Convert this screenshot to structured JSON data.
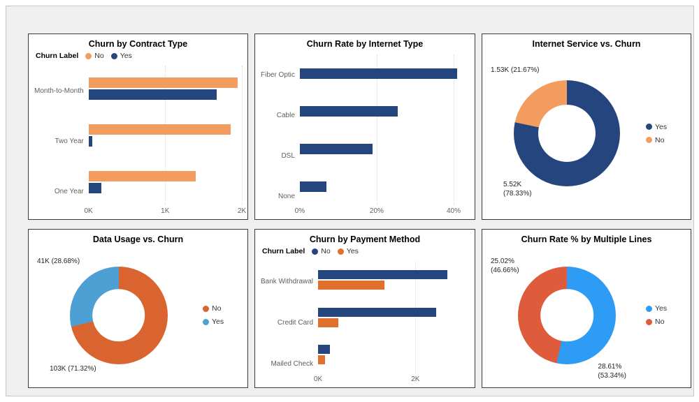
{
  "chart_data": [
    {
      "type": "bar",
      "orientation": "horizontal",
      "title": "Churn by Contract Type",
      "legend": {
        "title": "Churn Label",
        "items": [
          {
            "label": "No",
            "color": "#F39C5F"
          },
          {
            "label": "Yes",
            "color": "#24457D"
          }
        ]
      },
      "categories": [
        "Month-to-Month",
        "Two Year",
        "One Year"
      ],
      "series": [
        {
          "name": "No",
          "color": "#F39C5F",
          "values": [
            1945,
            1855,
            1400
          ]
        },
        {
          "name": "Yes",
          "color": "#24457D",
          "values": [
            1670,
            45,
            165
          ]
        }
      ],
      "x_ticks": [
        {
          "label": "0K",
          "value": 0
        },
        {
          "label": "1K",
          "value": 1000
        },
        {
          "label": "2K",
          "value": 2000
        }
      ],
      "xlim": [
        0,
        2000
      ],
      "grid": true,
      "legend_position": "top-left"
    },
    {
      "type": "bar",
      "orientation": "horizontal",
      "title": "Churn Rate by Internet Type",
      "categories": [
        "Fiber Optic",
        "Cable",
        "DSL",
        "None"
      ],
      "series": [
        {
          "name": "Churn Rate",
          "color": "#24457D",
          "values": [
            41,
            25.5,
            19,
            7
          ]
        }
      ],
      "x_ticks": [
        {
          "label": "0%",
          "value": 0
        },
        {
          "label": "20%",
          "value": 20
        },
        {
          "label": "40%",
          "value": 40
        }
      ],
      "xlim": [
        0,
        44
      ],
      "grid": true
    },
    {
      "type": "donut",
      "title": "Internet Service vs. Churn",
      "slices": [
        {
          "name": "Yes",
          "color": "#24457D",
          "value_label": "5.52K",
          "pct": 78.33,
          "label_lines": [
            "5.52K",
            "(78.33%)"
          ],
          "label_anchor": "bottom-left"
        },
        {
          "name": "No",
          "color": "#F39C5F",
          "value_label": "1.53K",
          "pct": 21.67,
          "label_lines": [
            "1.53K (21.67%)"
          ],
          "label_anchor": "top-left"
        }
      ],
      "legend": {
        "items": [
          {
            "label": "Yes",
            "color": "#24457D"
          },
          {
            "label": "No",
            "color": "#F39C5F"
          }
        ]
      },
      "legend_position": "right"
    },
    {
      "type": "donut",
      "title": "Data Usage vs. Churn",
      "slices": [
        {
          "name": "No",
          "color": "#D9642F",
          "value_label": "103K",
          "pct": 71.32,
          "label_lines": [
            "103K (71.32%)"
          ],
          "label_anchor": "bottom-left"
        },
        {
          "name": "Yes",
          "color": "#4D9FD4",
          "value_label": "41K",
          "pct": 28.68,
          "label_lines": [
            "41K (28.68%)"
          ],
          "label_anchor": "top-left"
        }
      ],
      "legend": {
        "items": [
          {
            "label": "No",
            "color": "#D9642F"
          },
          {
            "label": "Yes",
            "color": "#4D9FD4"
          }
        ]
      },
      "legend_position": "right"
    },
    {
      "type": "bar",
      "orientation": "horizontal",
      "title": "Churn by Payment Method",
      "legend": {
        "title": "Churn Label",
        "items": [
          {
            "label": "No",
            "color": "#24457D"
          },
          {
            "label": "Yes",
            "color": "#E1702D"
          }
        ]
      },
      "categories": [
        "Bank Withdrawal",
        "Credit Card",
        "Mailed Check"
      ],
      "series": [
        {
          "name": "No",
          "color": "#24457D",
          "values": [
            2650,
            2420,
            250
          ]
        },
        {
          "name": "Yes",
          "color": "#E1702D",
          "values": [
            1370,
            420,
            140
          ]
        }
      ],
      "x_ticks": [
        {
          "label": "0K",
          "value": 0
        },
        {
          "label": "2K",
          "value": 2000
        }
      ],
      "xlim": [
        0,
        3100
      ],
      "grid": true,
      "legend_position": "top-left"
    },
    {
      "type": "donut",
      "title": "Churn Rate % by Multiple Lines",
      "slices": [
        {
          "name": "Yes",
          "color": "#2E9BF5",
          "value_label": "28.61%",
          "pct": 53.34,
          "label_lines": [
            "28.61%",
            "(53.34%)"
          ],
          "label_anchor": "bottom-right"
        },
        {
          "name": "No",
          "color": "#DE5B3C",
          "value_label": "25.02%",
          "pct": 46.66,
          "label_lines": [
            "25.02%",
            "(46.66%)"
          ],
          "label_anchor": "top-left"
        }
      ],
      "legend": {
        "items": [
          {
            "label": "Yes",
            "color": "#2E9BF5"
          },
          {
            "label": "No",
            "color": "#DE5B3C"
          }
        ]
      },
      "legend_position": "right"
    }
  ]
}
